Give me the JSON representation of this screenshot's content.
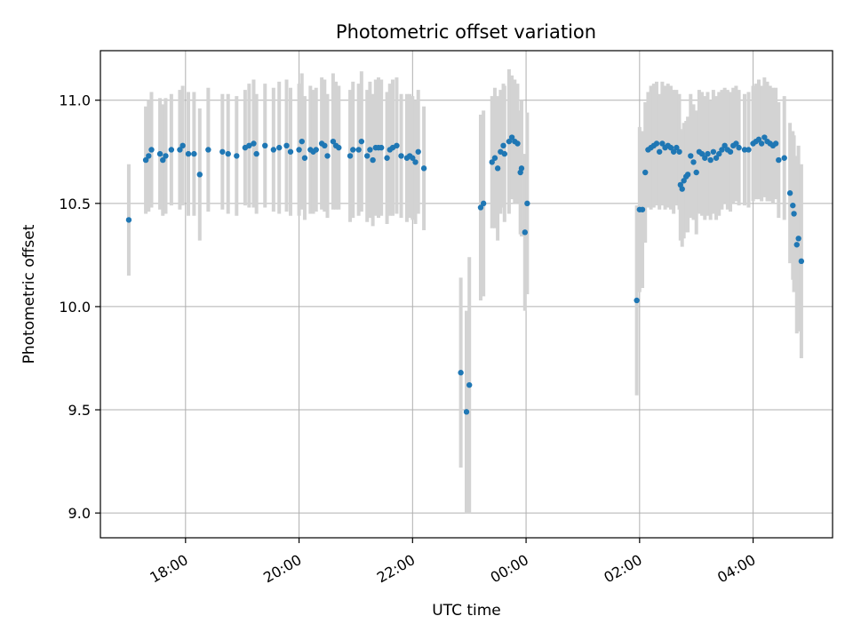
{
  "chart_data": {
    "type": "scatter",
    "title": "Photometric offset variation",
    "xlabel": "UTC time",
    "ylabel": "Photometric offset",
    "xlim_hours": [
      16.5,
      29.4
    ],
    "ylim": [
      8.88,
      11.24
    ],
    "x_ticks": [
      {
        "hour": 18,
        "label": "18:00"
      },
      {
        "hour": 20,
        "label": "20:00"
      },
      {
        "hour": 22,
        "label": "22:00"
      },
      {
        "hour": 24,
        "label": "00:00"
      },
      {
        "hour": 26,
        "label": "02:00"
      },
      {
        "hour": 28,
        "label": "04:00"
      }
    ],
    "y_ticks": [
      {
        "value": 9.0,
        "label": "9.0"
      },
      {
        "value": 9.5,
        "label": "9.5"
      },
      {
        "value": 10.0,
        "label": "10.0"
      },
      {
        "value": 10.5,
        "label": "10.5"
      },
      {
        "value": 11.0,
        "label": "11.0"
      }
    ],
    "grid": true,
    "colors": {
      "points": "#1f77b4",
      "errorbars": "#d3d3d3",
      "grid": "#b0b0b0"
    },
    "series": [
      {
        "name": "offset",
        "points": [
          [
            17.0,
            10.42,
            0.27
          ],
          [
            17.3,
            10.71,
            0.26
          ],
          [
            17.35,
            10.73,
            0.27
          ],
          [
            17.4,
            10.76,
            0.28
          ],
          [
            17.55,
            10.74,
            0.27
          ],
          [
            17.6,
            10.71,
            0.27
          ],
          [
            17.65,
            10.73,
            0.28
          ],
          [
            17.75,
            10.76,
            0.27
          ],
          [
            17.9,
            10.76,
            0.29
          ],
          [
            17.95,
            10.78,
            0.29
          ],
          [
            18.05,
            10.74,
            0.3
          ],
          [
            18.15,
            10.74,
            0.3
          ],
          [
            18.25,
            10.64,
            0.32
          ],
          [
            18.4,
            10.76,
            0.3
          ],
          [
            18.65,
            10.75,
            0.28
          ],
          [
            18.75,
            10.74,
            0.29
          ],
          [
            18.9,
            10.73,
            0.29
          ],
          [
            19.05,
            10.77,
            0.28
          ],
          [
            19.12,
            10.78,
            0.3
          ],
          [
            19.2,
            10.79,
            0.31
          ],
          [
            19.25,
            10.74,
            0.29
          ],
          [
            19.4,
            10.78,
            0.3
          ],
          [
            19.55,
            10.76,
            0.3
          ],
          [
            19.65,
            10.77,
            0.32
          ],
          [
            19.78,
            10.78,
            0.32
          ],
          [
            19.85,
            10.75,
            0.31
          ],
          [
            20.0,
            10.76,
            0.32
          ],
          [
            20.05,
            10.8,
            0.33
          ],
          [
            20.1,
            10.72,
            0.3
          ],
          [
            20.2,
            10.76,
            0.31
          ],
          [
            20.25,
            10.75,
            0.3
          ],
          [
            20.3,
            10.76,
            0.3
          ],
          [
            20.4,
            10.79,
            0.32
          ],
          [
            20.45,
            10.78,
            0.32
          ],
          [
            20.5,
            10.73,
            0.3
          ],
          [
            20.6,
            10.8,
            0.33
          ],
          [
            20.65,
            10.78,
            0.31
          ],
          [
            20.7,
            10.77,
            0.3
          ],
          [
            20.9,
            10.73,
            0.32
          ],
          [
            20.95,
            10.76,
            0.33
          ],
          [
            21.05,
            10.76,
            0.32
          ],
          [
            21.1,
            10.8,
            0.34
          ],
          [
            21.2,
            10.73,
            0.32
          ],
          [
            21.25,
            10.76,
            0.33
          ],
          [
            21.3,
            10.71,
            0.32
          ],
          [
            21.35,
            10.77,
            0.33
          ],
          [
            21.4,
            10.77,
            0.34
          ],
          [
            21.45,
            10.77,
            0.33
          ],
          [
            21.55,
            10.72,
            0.32
          ],
          [
            21.6,
            10.76,
            0.32
          ],
          [
            21.65,
            10.77,
            0.33
          ],
          [
            21.72,
            10.78,
            0.33
          ],
          [
            21.8,
            10.73,
            0.3
          ],
          [
            21.9,
            10.72,
            0.31
          ],
          [
            21.95,
            10.73,
            0.3
          ],
          [
            22.0,
            10.72,
            0.3
          ],
          [
            22.05,
            10.7,
            0.3
          ],
          [
            22.1,
            10.75,
            0.3
          ],
          [
            22.2,
            10.67,
            0.3
          ],
          [
            22.85,
            9.68,
            0.46
          ],
          [
            22.95,
            9.49,
            0.49
          ],
          [
            23.0,
            9.62,
            0.62
          ],
          [
            23.2,
            10.48,
            0.45
          ],
          [
            23.25,
            10.5,
            0.45
          ],
          [
            23.4,
            10.7,
            0.32
          ],
          [
            23.45,
            10.72,
            0.34
          ],
          [
            23.5,
            10.67,
            0.35
          ],
          [
            23.55,
            10.75,
            0.3
          ],
          [
            23.6,
            10.78,
            0.3
          ],
          [
            23.62,
            10.74,
            0.33
          ],
          [
            23.7,
            10.8,
            0.35
          ],
          [
            23.75,
            10.82,
            0.3
          ],
          [
            23.8,
            10.8,
            0.3
          ],
          [
            23.85,
            10.79,
            0.29
          ],
          [
            23.9,
            10.65,
            0.3
          ],
          [
            23.92,
            10.67,
            0.33
          ],
          [
            23.98,
            10.36,
            0.38
          ],
          [
            24.02,
            10.5,
            0.44
          ],
          [
            25.95,
            10.03,
            0.46
          ],
          [
            26.0,
            10.47,
            0.4
          ],
          [
            26.05,
            10.47,
            0.38
          ],
          [
            26.1,
            10.65,
            0.34
          ],
          [
            26.15,
            10.76,
            0.28
          ],
          [
            26.2,
            10.77,
            0.3
          ],
          [
            26.25,
            10.78,
            0.3
          ],
          [
            26.3,
            10.79,
            0.3
          ],
          [
            26.35,
            10.75,
            0.28
          ],
          [
            26.4,
            10.79,
            0.3
          ],
          [
            26.45,
            10.77,
            0.3
          ],
          [
            26.5,
            10.78,
            0.3
          ],
          [
            26.55,
            10.77,
            0.3
          ],
          [
            26.6,
            10.75,
            0.3
          ],
          [
            26.65,
            10.77,
            0.28
          ],
          [
            26.7,
            10.75,
            0.28
          ],
          [
            26.72,
            10.59,
            0.27
          ],
          [
            26.75,
            10.57,
            0.28
          ],
          [
            26.78,
            10.61,
            0.28
          ],
          [
            26.82,
            10.63,
            0.27
          ],
          [
            26.85,
            10.64,
            0.28
          ],
          [
            26.9,
            10.73,
            0.3
          ],
          [
            26.95,
            10.7,
            0.28
          ],
          [
            27.0,
            10.65,
            0.3
          ],
          [
            27.05,
            10.75,
            0.3
          ],
          [
            27.1,
            10.74,
            0.3
          ],
          [
            27.15,
            10.72,
            0.3
          ],
          [
            27.2,
            10.74,
            0.3
          ],
          [
            27.25,
            10.71,
            0.29
          ],
          [
            27.3,
            10.75,
            0.3
          ],
          [
            27.35,
            10.72,
            0.3
          ],
          [
            27.4,
            10.74,
            0.3
          ],
          [
            27.45,
            10.76,
            0.29
          ],
          [
            27.5,
            10.78,
            0.28
          ],
          [
            27.55,
            10.76,
            0.29
          ],
          [
            27.6,
            10.75,
            0.29
          ],
          [
            27.65,
            10.78,
            0.28
          ],
          [
            27.7,
            10.79,
            0.28
          ],
          [
            27.75,
            10.77,
            0.28
          ],
          [
            27.85,
            10.76,
            0.27
          ],
          [
            27.92,
            10.76,
            0.28
          ],
          [
            28.0,
            10.79,
            0.28
          ],
          [
            28.05,
            10.8,
            0.28
          ],
          [
            28.1,
            10.81,
            0.29
          ],
          [
            28.15,
            10.79,
            0.28
          ],
          [
            28.2,
            10.82,
            0.29
          ],
          [
            28.25,
            10.8,
            0.29
          ],
          [
            28.3,
            10.79,
            0.28
          ],
          [
            28.35,
            10.78,
            0.28
          ],
          [
            28.4,
            10.79,
            0.27
          ],
          [
            28.45,
            10.71,
            0.28
          ],
          [
            28.55,
            10.72,
            0.3
          ],
          [
            28.65,
            10.55,
            0.34
          ],
          [
            28.7,
            10.49,
            0.36
          ],
          [
            28.72,
            10.45,
            0.38
          ],
          [
            28.77,
            10.3,
            0.43
          ],
          [
            28.8,
            10.33,
            0.45
          ],
          [
            28.85,
            10.22,
            0.47
          ]
        ]
      }
    ]
  }
}
